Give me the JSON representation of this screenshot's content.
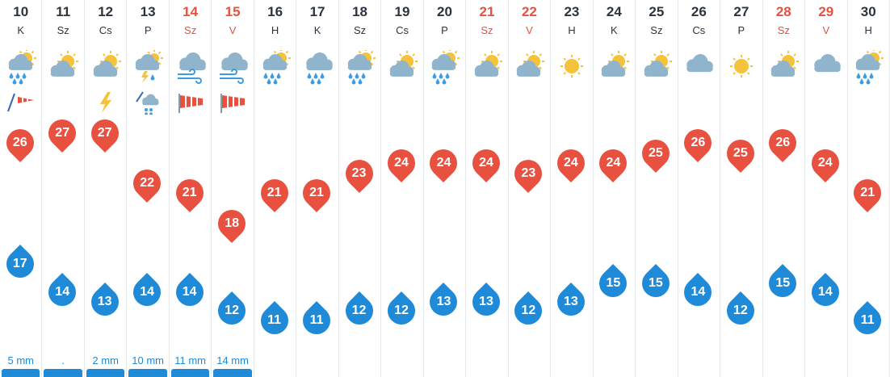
{
  "days": [
    {
      "day": "10",
      "name": "K",
      "weekend": false,
      "icon": "sun-cloud-rain-icon",
      "extra": "wind-gust-icon",
      "max": "26",
      "min": "17",
      "maxLevel": 26,
      "minLevel": 17,
      "rain": "5 mm",
      "rainBar": true
    },
    {
      "day": "11",
      "name": "Sz",
      "weekend": false,
      "icon": "partly-cloudy-icon",
      "extra": "",
      "max": "27",
      "min": "14",
      "maxLevel": 27,
      "minLevel": 14,
      "rain": ".",
      "rainBar": true
    },
    {
      "day": "12",
      "name": "Cs",
      "weekend": false,
      "icon": "partly-cloudy-icon",
      "extra": "lightning-icon",
      "max": "27",
      "min": "13",
      "maxLevel": 27,
      "minLevel": 13,
      "rain": "2 mm",
      "rainBar": true
    },
    {
      "day": "13",
      "name": "P",
      "weekend": false,
      "icon": "thunderstorm-icon",
      "extra": "hail-icon",
      "max": "22",
      "min": "14",
      "maxLevel": 22,
      "minLevel": 14,
      "rain": "10 mm",
      "rainBar": true
    },
    {
      "day": "14",
      "name": "Sz",
      "weekend": true,
      "icon": "cloud-wind-icon",
      "extra": "windsock-icon",
      "max": "21",
      "min": "14",
      "maxLevel": 21,
      "minLevel": 14,
      "rain": "11 mm",
      "rainBar": true
    },
    {
      "day": "15",
      "name": "V",
      "weekend": true,
      "icon": "cloud-wind-icon",
      "extra": "windsock-icon",
      "max": "18",
      "min": "12",
      "maxLevel": 18,
      "minLevel": 12,
      "rain": "14 mm",
      "rainBar": true
    },
    {
      "day": "16",
      "name": "H",
      "weekend": false,
      "icon": "sun-cloud-rain-icon",
      "extra": "",
      "max": "21",
      "min": "11",
      "maxLevel": 21,
      "minLevel": 11,
      "rain": "",
      "rainBar": false
    },
    {
      "day": "17",
      "name": "K",
      "weekend": false,
      "icon": "cloud-rain-icon",
      "extra": "",
      "max": "21",
      "min": "11",
      "maxLevel": 21,
      "minLevel": 11,
      "rain": "",
      "rainBar": false
    },
    {
      "day": "18",
      "name": "Sz",
      "weekend": false,
      "icon": "sun-cloud-rain-icon",
      "extra": "",
      "max": "23",
      "min": "12",
      "maxLevel": 23,
      "minLevel": 12,
      "rain": "",
      "rainBar": false
    },
    {
      "day": "19",
      "name": "Cs",
      "weekend": false,
      "icon": "partly-cloudy-icon",
      "extra": "",
      "max": "24",
      "min": "12",
      "maxLevel": 24,
      "minLevel": 12,
      "rain": "",
      "rainBar": false
    },
    {
      "day": "20",
      "name": "P",
      "weekend": false,
      "icon": "sun-cloud-rain-icon",
      "extra": "",
      "max": "24",
      "min": "13",
      "maxLevel": 24,
      "minLevel": 13,
      "rain": "",
      "rainBar": false
    },
    {
      "day": "21",
      "name": "Sz",
      "weekend": true,
      "icon": "partly-cloudy-icon",
      "extra": "",
      "max": "24",
      "min": "13",
      "maxLevel": 24,
      "minLevel": 13,
      "rain": "",
      "rainBar": false
    },
    {
      "day": "22",
      "name": "V",
      "weekend": true,
      "icon": "partly-cloudy-icon",
      "extra": "",
      "max": "23",
      "min": "12",
      "maxLevel": 23,
      "minLevel": 12,
      "rain": "",
      "rainBar": false
    },
    {
      "day": "23",
      "name": "H",
      "weekend": false,
      "icon": "sun-icon",
      "extra": "",
      "max": "24",
      "min": "13",
      "maxLevel": 24,
      "minLevel": 13,
      "rain": "",
      "rainBar": false
    },
    {
      "day": "24",
      "name": "K",
      "weekend": false,
      "icon": "partly-cloudy-icon",
      "extra": "",
      "max": "24",
      "min": "15",
      "maxLevel": 24,
      "minLevel": 15,
      "rain": "",
      "rainBar": false
    },
    {
      "day": "25",
      "name": "Sz",
      "weekend": false,
      "icon": "partly-cloudy-icon",
      "extra": "",
      "max": "25",
      "min": "15",
      "maxLevel": 25,
      "minLevel": 15,
      "rain": "",
      "rainBar": false
    },
    {
      "day": "26",
      "name": "Cs",
      "weekend": false,
      "icon": "cloud-icon",
      "extra": "",
      "max": "26",
      "min": "14",
      "maxLevel": 26,
      "minLevel": 14,
      "rain": "",
      "rainBar": false
    },
    {
      "day": "27",
      "name": "P",
      "weekend": false,
      "icon": "sun-icon",
      "extra": "",
      "max": "25",
      "min": "12",
      "maxLevel": 25,
      "minLevel": 12,
      "rain": "",
      "rainBar": false
    },
    {
      "day": "28",
      "name": "Sz",
      "weekend": true,
      "icon": "partly-cloudy-icon",
      "extra": "",
      "max": "26",
      "min": "15",
      "maxLevel": 26,
      "minLevel": 15,
      "rain": "",
      "rainBar": false
    },
    {
      "day": "29",
      "name": "V",
      "weekend": true,
      "icon": "cloud-icon",
      "extra": "",
      "max": "24",
      "min": "14",
      "maxLevel": 24,
      "minLevel": 14,
      "rain": "",
      "rainBar": false
    },
    {
      "day": "30",
      "name": "H",
      "weekend": false,
      "icon": "sun-cloud-rain-icon",
      "extra": "",
      "max": "21",
      "min": "11",
      "maxLevel": 21,
      "minLevel": 11,
      "rain": "",
      "rainBar": false
    }
  ],
  "colors": {
    "max": "#e8503f",
    "min": "#1f8ad8",
    "weekend": "#e8503f",
    "text": "#2b3540",
    "cloud": "#8fb4cc",
    "sun": "#f5c33b",
    "rain": "#3d9be0"
  }
}
